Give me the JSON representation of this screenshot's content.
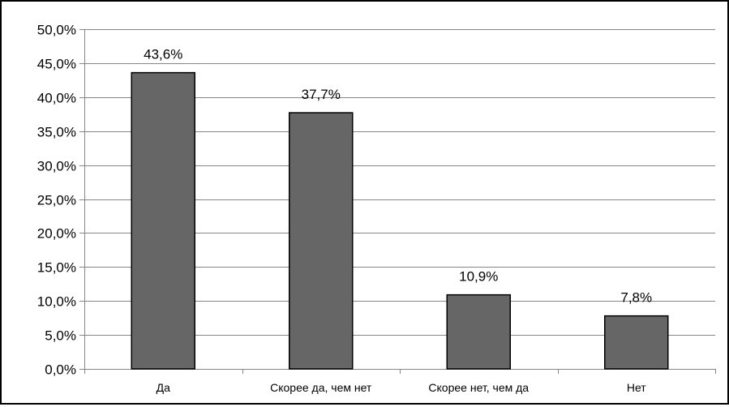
{
  "chart_data": {
    "type": "bar",
    "categories": [
      "Да",
      "Скорее да, чем нет",
      "Скорее нет, чем да",
      "Нет"
    ],
    "values": [
      43.6,
      37.7,
      10.9,
      7.8
    ],
    "data_labels": [
      "43,6%",
      "37,7%",
      "10,9%",
      "7,8%"
    ],
    "title": "",
    "xlabel": "",
    "ylabel": "",
    "ylim": [
      0,
      50
    ],
    "yticks": [
      0,
      5,
      10,
      15,
      20,
      25,
      30,
      35,
      40,
      45,
      50
    ],
    "ytick_labels": [
      "0,0%",
      "5,0%",
      "10,0%",
      "15,0%",
      "20,0%",
      "25,0%",
      "30,0%",
      "35,0%",
      "40,0%",
      "45,0%",
      "50,0%"
    ],
    "grid": "horizontal",
    "legend": "none",
    "colors": {
      "bar_fill": "#666666",
      "bar_stroke": "#000000",
      "grid": "#868686",
      "axis": "#868686",
      "text": "#000000"
    }
  }
}
